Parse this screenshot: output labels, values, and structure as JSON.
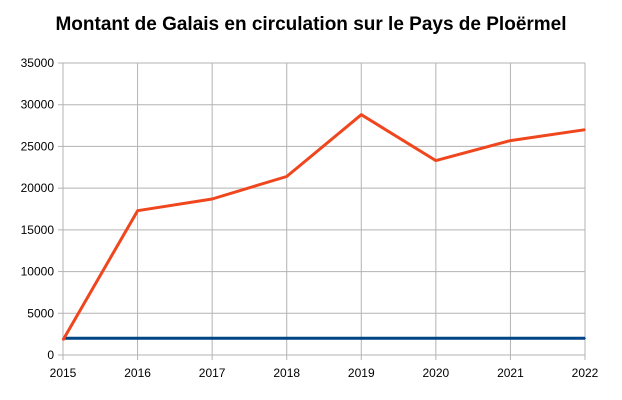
{
  "chart_data": {
    "type": "line",
    "title": "Montant de Galais en circulation sur le Pays de Ploërmel",
    "xlabel": "",
    "ylabel": "",
    "x": [
      "2015",
      "2016",
      "2017",
      "2018",
      "2019",
      "2020",
      "2021",
      "2022"
    ],
    "ylim": [
      0,
      35000
    ],
    "yticks": [
      "0",
      "5000",
      "10000",
      "15000",
      "20000",
      "25000",
      "30000",
      "35000"
    ],
    "grid": true,
    "legend": "none",
    "series": [
      {
        "color": "#f0461e",
        "values": [
          1800,
          17300,
          18700,
          21400,
          28800,
          23300,
          25700,
          27000
        ]
      },
      {
        "color": "#004586",
        "values": [
          2000,
          2000,
          2000,
          2000,
          2000,
          2000,
          2000,
          2000
        ]
      }
    ]
  }
}
